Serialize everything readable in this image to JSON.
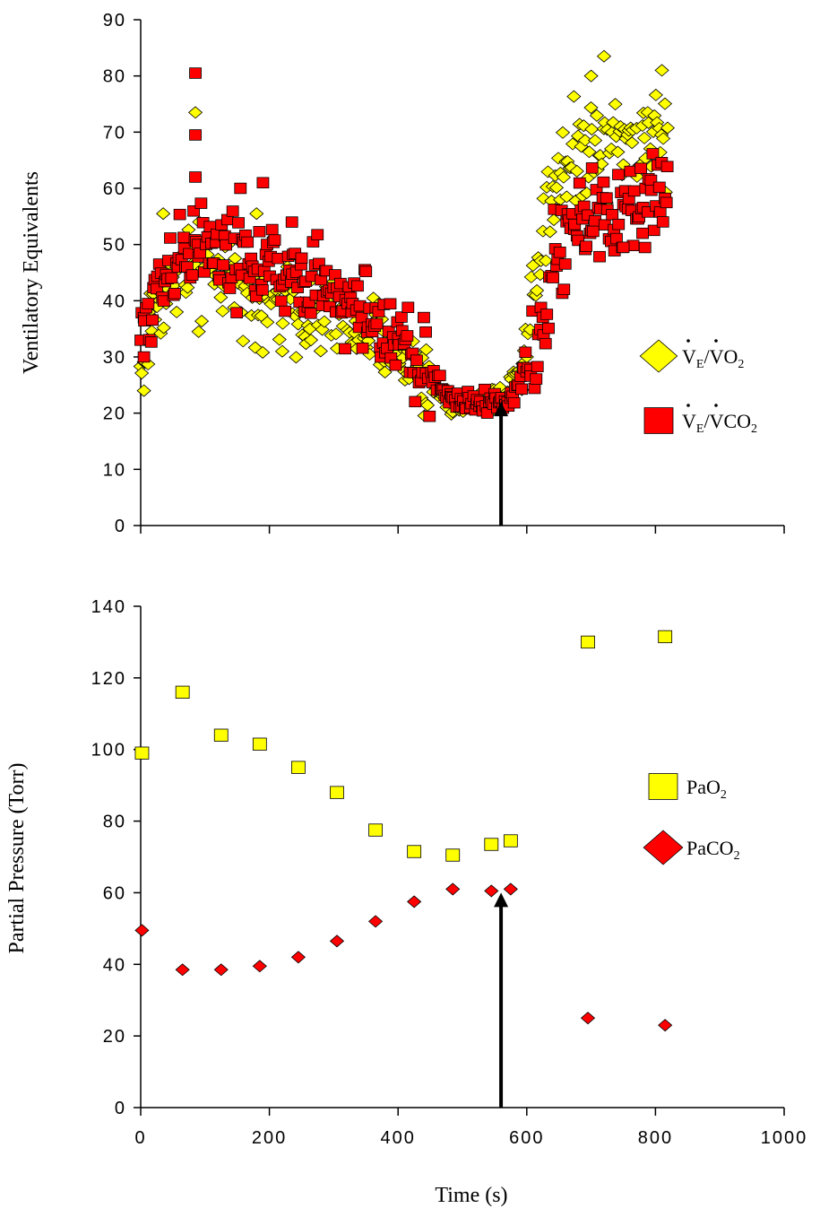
{
  "chart_data": [
    {
      "type": "scatter",
      "ylabel": "Ventilatory Equivalents",
      "xlim": [
        0,
        1000
      ],
      "ylim": [
        0,
        90
      ],
      "y_ticks": [
        "0",
        "10",
        "20",
        "30",
        "40",
        "50",
        "60",
        "70",
        "80",
        "90"
      ],
      "legend_position": "right",
      "arrow_x": 560,
      "arrow_y_range": [
        0,
        22
      ],
      "series": [
        {
          "name": "V̇E/V̇O2",
          "label_base": "V",
          "label_sub": "E",
          "label_sep": "/V",
          "label_tail": "O",
          "label_tail_sub": "2",
          "marker": "diamond",
          "color": "#FFFF00",
          "profile": [
            [
              0,
              27
            ],
            [
              20,
              39
            ],
            [
              40,
              43
            ],
            [
              70,
              45
            ],
            [
              100,
              46
            ],
            [
              130,
              44
            ],
            [
              160,
              43
            ],
            [
              200,
              41
            ],
            [
              250,
              39
            ],
            [
              300,
              37
            ],
            [
              350,
              34
            ],
            [
              400,
              31
            ],
            [
              450,
              26
            ],
            [
              480,
              22
            ],
            [
              520,
              22
            ],
            [
              560,
              23
            ],
            [
              590,
              28
            ],
            [
              610,
              40
            ],
            [
              630,
              58
            ],
            [
              660,
              65
            ],
            [
              700,
              69
            ],
            [
              750,
              69
            ],
            [
              820,
              68
            ]
          ],
          "outliers": [
            [
              85,
              73.5
            ],
            [
              720,
              83.5
            ],
            [
              810,
              81
            ],
            [
              700,
              80
            ],
            [
              35,
              55.5
            ],
            [
              180,
              55.5
            ],
            [
              90,
              34.5
            ],
            [
              220,
              31
            ],
            [
              5,
              24
            ]
          ]
        },
        {
          "name": "V̇E/V̇CO2",
          "label_base": "V",
          "label_sub": "E",
          "label_sep": "/V",
          "label_tail": "CO",
          "label_tail_sub": "2",
          "marker": "square",
          "color": "#FF0000",
          "profile": [
            [
              0,
              32
            ],
            [
              20,
              42
            ],
            [
              40,
              46
            ],
            [
              70,
              50
            ],
            [
              100,
              50
            ],
            [
              130,
              48
            ],
            [
              160,
              47
            ],
            [
              200,
              46
            ],
            [
              250,
              44
            ],
            [
              300,
              41
            ],
            [
              350,
              38
            ],
            [
              400,
              33
            ],
            [
              450,
              27
            ],
            [
              480,
              22.5
            ],
            [
              520,
              22
            ],
            [
              570,
              22
            ],
            [
              600,
              27
            ],
            [
              620,
              33
            ],
            [
              640,
              44
            ],
            [
              660,
              50
            ],
            [
              700,
              55
            ],
            [
              750,
              56
            ],
            [
              820,
              57
            ]
          ],
          "outliers": [
            [
              85,
              80.5
            ],
            [
              85,
              69.5
            ],
            [
              85,
              62
            ],
            [
              155,
              60
            ],
            [
              190,
              61
            ],
            [
              235,
              54
            ],
            [
              750,
              49.5
            ],
            [
              780,
              52
            ],
            [
              5,
              30
            ]
          ]
        }
      ]
    },
    {
      "type": "scatter",
      "ylabel": "Partial Pressure (Torr)",
      "xlabel": "Time (s)",
      "xlim": [
        0,
        1000
      ],
      "ylim": [
        0,
        140
      ],
      "x_ticks": [
        "0",
        "200",
        "400",
        "600",
        "800",
        "1000"
      ],
      "y_ticks": [
        "0",
        "20",
        "40",
        "60",
        "80",
        "100",
        "120",
        "140"
      ],
      "legend_position": "right",
      "arrow_x": 560,
      "arrow_y_range": [
        0,
        60
      ],
      "series": [
        {
          "name": "PaO2",
          "label_base": "PaO",
          "label_sub": "2",
          "marker": "square",
          "color": "#FFFF00",
          "x": [
            2,
            65,
            125,
            185,
            245,
            305,
            365,
            425,
            485,
            545,
            575,
            695,
            815
          ],
          "y": [
            99,
            116,
            104,
            101.5,
            95,
            88,
            77.5,
            71.5,
            70.5,
            73.5,
            74.5,
            130,
            131.5
          ]
        },
        {
          "name": "PaCO2",
          "label_base": "PaCO",
          "label_sub": "2",
          "marker": "diamond",
          "color": "#FF0000",
          "x": [
            2,
            65,
            125,
            185,
            245,
            305,
            365,
            425,
            485,
            545,
            575,
            695,
            815
          ],
          "y": [
            49.5,
            38.5,
            38.5,
            39.5,
            42,
            46.5,
            52,
            57.5,
            61,
            60.5,
            61,
            25,
            23
          ]
        }
      ]
    }
  ]
}
